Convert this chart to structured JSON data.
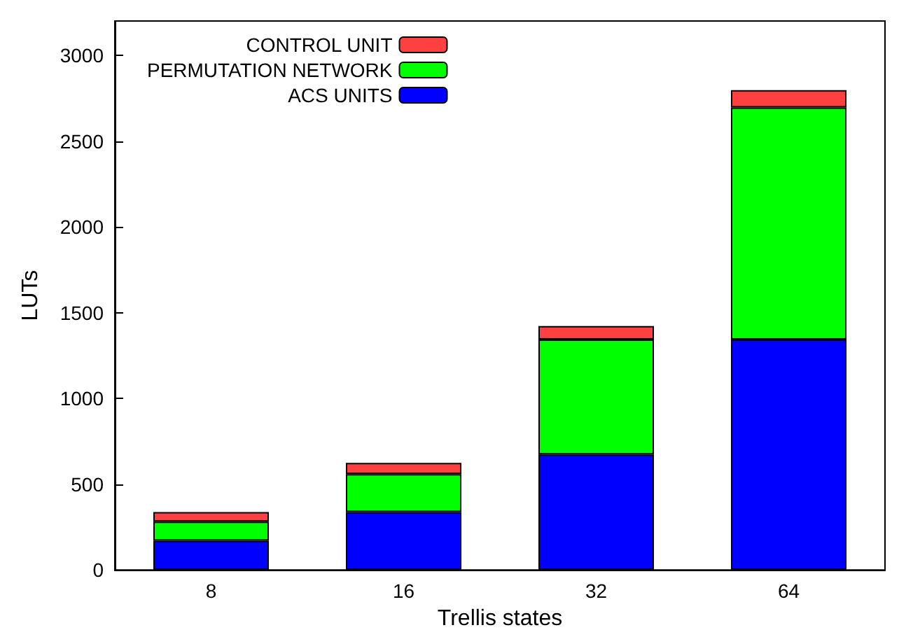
{
  "chart_data": {
    "type": "bar",
    "stacked": true,
    "xlabel": "Trellis states",
    "ylabel": "LUTs",
    "categories": [
      "8",
      "16",
      "32",
      "64"
    ],
    "series": [
      {
        "name": "ACS UNITS",
        "color": "#0000ff",
        "values": [
          170,
          337,
          673,
          1343
        ]
      },
      {
        "name": "PERMUTATION NETWORK",
        "color": "#00ff00",
        "values": [
          111,
          222,
          670,
          1353
        ]
      },
      {
        "name": "CONTROL UNIT",
        "color": "#ff4040",
        "values": [
          56,
          65,
          79,
          101
        ]
      }
    ],
    "ylim": [
      0,
      3200
    ],
    "yticks": [
      0,
      500,
      1000,
      1500,
      2000,
      2500,
      3000
    ],
    "grid": false,
    "legend": "top left"
  }
}
